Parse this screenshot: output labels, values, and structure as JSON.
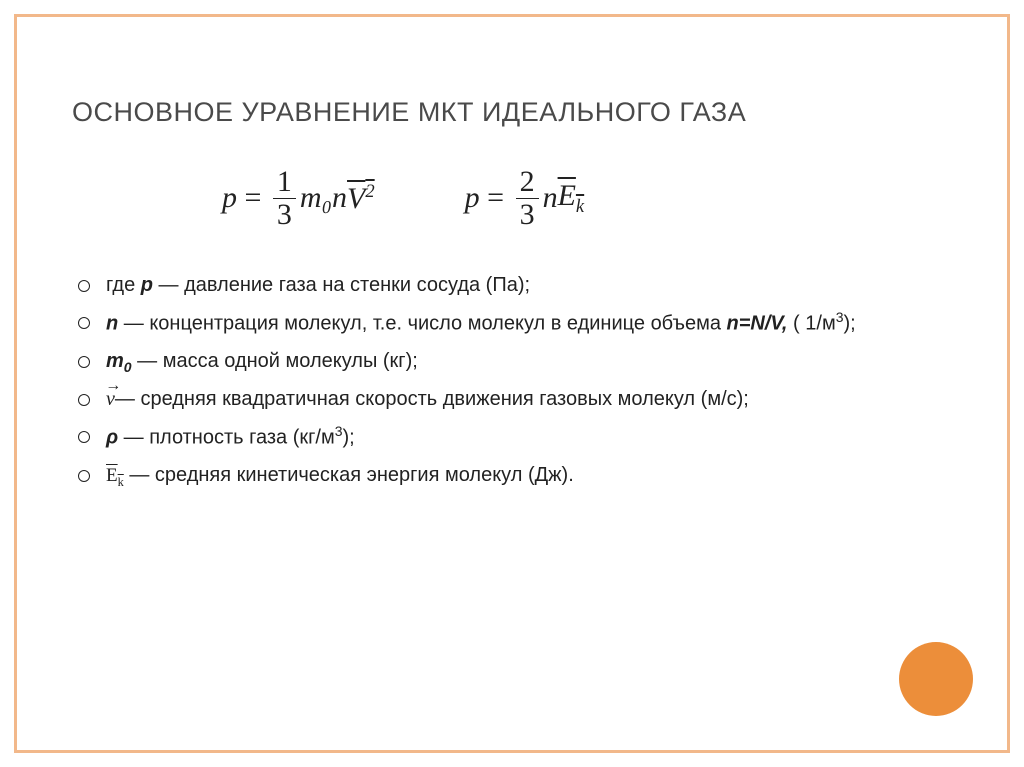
{
  "slide": {
    "title": "ОСНОВНОЕ УРАВНЕНИЕ МКТ ИДЕАЛЬНОГО ГАЗА",
    "frame_color": "#f2b88a",
    "circle_color": "#ec8e3a",
    "title_color": "#4a4a4a",
    "text_color": "#222222",
    "background_color": "#ffffff",
    "title_fontsize": 27,
    "body_fontsize": 20,
    "equation_fontsize": 30,
    "equations": {
      "eq1": {
        "lhs": "p",
        "coef_num": "1",
        "coef_den": "3",
        "factors": "m₀n",
        "tail_base": "V",
        "tail_exp": "2",
        "tail_overline": true
      },
      "eq2": {
        "lhs": "p",
        "coef_num": "2",
        "coef_den": "3",
        "factors": "n",
        "tail_base": "E",
        "tail_sub": "k",
        "tail_overline": true
      }
    },
    "definitions": [
      {
        "symbol_html": "где <span class=\"bi\">p</span>",
        "text": " — давление газа на стенки сосуда (Па);"
      },
      {
        "symbol_html": "<span class=\"bi\">n</span>",
        "text": " — концентрация молекул, т.е. число молекул в единице объема <span class=\"bi\">n=N/V,</span> ( 1/м<span class=\"unit-sup\">3</span>);"
      },
      {
        "symbol_html": "<span class=\"bi\">m<span class=\"def-sub\">0</span></span>",
        "text": " — масса одной молекулы (кг);"
      },
      {
        "symbol_html": "<span class=\"v-arrow\">v</span>",
        "text": "— средняя квадратичная скорость движения газовых молекул (м/с);"
      },
      {
        "symbol_html": "<span class=\"bi\">ρ</span>",
        "text": " — плотность газа (кг/м<span class=\"unit-sup\">3</span>);"
      },
      {
        "symbol_html": "<span class=\"ek-over\">E<span class=\"k\">k</span></span>",
        "text": " — средняя кинетическая энергия молекул (Дж)."
      }
    ]
  }
}
